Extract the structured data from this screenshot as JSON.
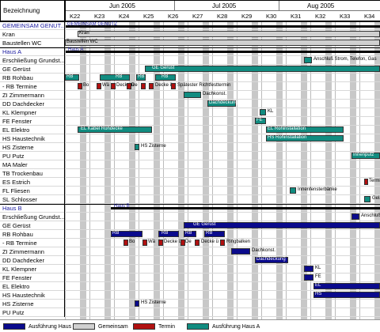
{
  "header": {
    "label": "Bezeichnung",
    "months": [
      "Jun 2005",
      "Jul 2005",
      "Aug 2005"
    ],
    "weeks": [
      "K22",
      "K23",
      "K24",
      "K25",
      "K26",
      "K27",
      "K28",
      "K29",
      "K30",
      "K31",
      "K32",
      "K33",
      "K34"
    ]
  },
  "rows": [
    {
      "label": "GEMEINSAM GENUT...",
      "group": true
    },
    {
      "label": "Kran"
    },
    {
      "label": "Baustellen WC"
    },
    {
      "label": "Haus A",
      "group": true
    },
    {
      "label": "Erschließung Grundst..."
    },
    {
      "label": "GE  Gerüst"
    },
    {
      "label": "RB  Rohbau"
    },
    {
      "label": "  -    RB  Termine"
    },
    {
      "label": "ZI  Zimmermann"
    },
    {
      "label": "DD  Dachdecker"
    },
    {
      "label": "KL  Klempner"
    },
    {
      "label": "FE  Fenster"
    },
    {
      "label": "EL  Elektro"
    },
    {
      "label": "HS  Haustechnik"
    },
    {
      "label": "HS  Zisterne"
    },
    {
      "label": "PU  Putz"
    },
    {
      "label": "MA  Maler"
    },
    {
      "label": "TB  Trockenbau"
    },
    {
      "label": "ES  Estrich"
    },
    {
      "label": "FL  Fliesen"
    },
    {
      "label": "SL  Schlosser"
    },
    {
      "label": "Haus B",
      "group": true
    },
    {
      "label": "Erschließung Grundst..."
    },
    {
      "label": "GE  Gerüst"
    },
    {
      "label": "RB  Rohbau"
    },
    {
      "label": "  -    RB  Termine"
    },
    {
      "label": "ZI  Zimmermann"
    },
    {
      "label": "DD  Dachdecker"
    },
    {
      "label": "KL  Klempner"
    },
    {
      "label": "FE  Fenster"
    },
    {
      "label": "EL  Elektro"
    },
    {
      "label": "HS  Haustechnik"
    },
    {
      "label": "HS  Zisterne"
    },
    {
      "label": "PU  Putz"
    }
  ],
  "bar_texts": {
    "gemeinsam": "GEMEINSAM GENUTZ",
    "kran": "Kran",
    "wc": "Baustellen WC",
    "hausA": "Haus A",
    "anschluss": "Anschluß Strom, Telefon, Gas",
    "geruestA": "GE Gerüst",
    "rb1": "RB",
    "rb2": "RB",
    "rb3": "RB",
    "rb4": "RB",
    "rbTermine": [
      "Bo",
      "Wä",
      "Decke ü",
      "De",
      "Decke ü",
      "Spätester Richtfesttermin"
    ],
    "dachkonstA": "Dachkonst.",
    "dachdeckungA": "Dachdeckung",
    "klA": "KL",
    "feA": "FE",
    "elKabel": "EL Kabel Rohdecke",
    "elRoh": "EL Rohinstallation",
    "hsRoh": "HS Rohinstallation",
    "zisterneA": "HS Zisterne",
    "putzA": "Innenputz",
    "estrichA": "Terminvereinbarung",
    "fliesenA": "Innenfensterbänke",
    "schlosserA": "Geländer",
    "hausB": "Haus B",
    "anschlussB": "Anschluß",
    "geruestB": "GE Gerüst",
    "rbB": [
      "RB",
      "RB",
      "RB",
      "RB"
    ],
    "rbTermineB": [
      "Bo",
      "Wä",
      "Decke ü",
      "De",
      "Decke ü",
      "Ringbalken"
    ],
    "dachkonstB": "Dachkonst.",
    "dachdeckungB": "Dachdeckung",
    "klB": "KL",
    "feB": "FE",
    "elB": "EL",
    "hsB": "HS",
    "zisterneB": "HS Zisterne"
  },
  "legend": [
    {
      "label": "Ausführung Haus B",
      "color": "#0a0a8c"
    },
    {
      "label": "Gemeinsam",
      "color": "#d0d0d0"
    },
    {
      "label": "Termin",
      "color": "#b01010"
    },
    {
      "label": "Ausführung Haus A",
      "color": "#118c80"
    }
  ]
}
